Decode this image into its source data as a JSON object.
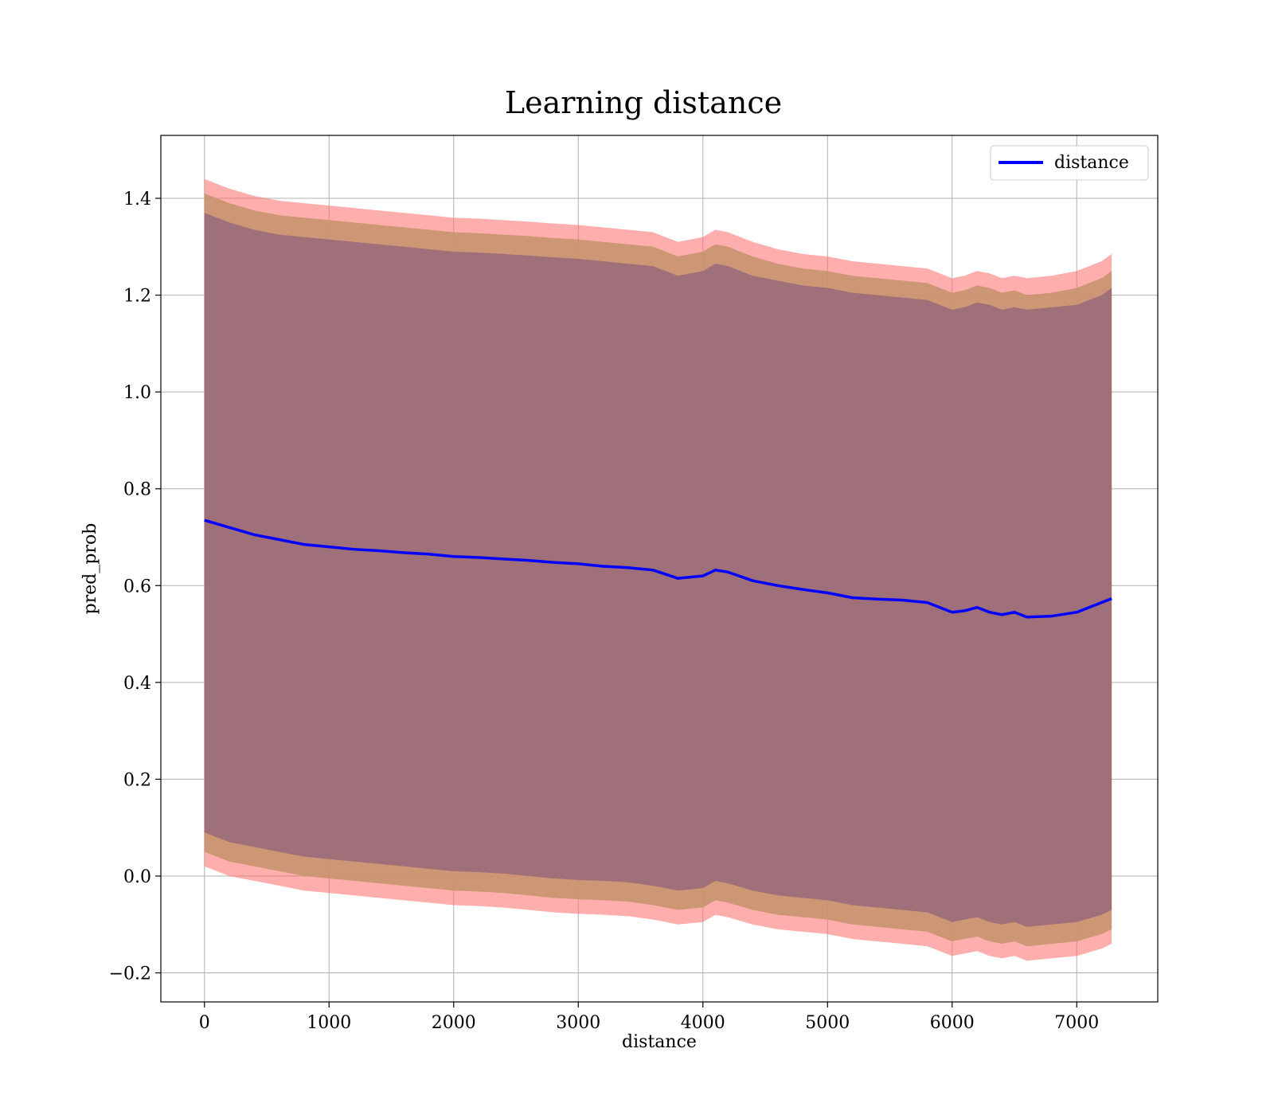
{
  "chart_data": {
    "type": "line",
    "title": "Learning distance",
    "xlabel": "distance",
    "ylabel": "pred_prob",
    "xlim": [
      -350,
      7650
    ],
    "ylim": [
      -0.26,
      1.53
    ],
    "xticks": [
      0,
      1000,
      2000,
      3000,
      4000,
      5000,
      6000,
      7000
    ],
    "xtick_labels": [
      "0",
      "1000",
      "2000",
      "3000",
      "4000",
      "5000",
      "6000",
      "7000"
    ],
    "yticks": [
      -0.2,
      0.0,
      0.2,
      0.4,
      0.6,
      0.8,
      1.0,
      1.2,
      1.4
    ],
    "ytick_labels": [
      "−0.2",
      "0.0",
      "0.2",
      "0.4",
      "0.6",
      "0.8",
      "1.0",
      "1.2",
      "1.4"
    ],
    "grid": true,
    "legend": {
      "position": "top-right",
      "entries": [
        "distance"
      ]
    },
    "colors": {
      "line": "#0000ff",
      "band_outer": "#ff6b6b",
      "band_middle": "#c8936e",
      "band_inner": "#a0707a"
    },
    "x": [
      0,
      200,
      400,
      600,
      800,
      1000,
      1200,
      1400,
      1600,
      1800,
      2000,
      2200,
      2400,
      2600,
      2800,
      3000,
      3200,
      3400,
      3600,
      3800,
      4000,
      4100,
      4200,
      4400,
      4600,
      4800,
      5000,
      5200,
      5400,
      5600,
      5800,
      6000,
      6100,
      6200,
      6300,
      6400,
      6500,
      6600,
      6800,
      7000,
      7200,
      7280
    ],
    "series": [
      {
        "name": "distance",
        "values": [
          0.735,
          0.72,
          0.705,
          0.695,
          0.685,
          0.68,
          0.675,
          0.672,
          0.668,
          0.665,
          0.66,
          0.658,
          0.655,
          0.652,
          0.648,
          0.645,
          0.64,
          0.637,
          0.632,
          0.615,
          0.62,
          0.632,
          0.628,
          0.61,
          0.6,
          0.592,
          0.585,
          0.575,
          0.572,
          0.57,
          0.565,
          0.545,
          0.548,
          0.555,
          0.545,
          0.54,
          0.545,
          0.535,
          0.537,
          0.545,
          0.565,
          0.573
        ]
      }
    ],
    "band_outer_upper": [
      1.44,
      1.42,
      1.405,
      1.395,
      1.39,
      1.385,
      1.38,
      1.375,
      1.37,
      1.365,
      1.36,
      1.358,
      1.355,
      1.352,
      1.348,
      1.345,
      1.34,
      1.335,
      1.33,
      1.31,
      1.32,
      1.335,
      1.33,
      1.31,
      1.295,
      1.285,
      1.28,
      1.27,
      1.265,
      1.26,
      1.255,
      1.235,
      1.24,
      1.25,
      1.245,
      1.235,
      1.24,
      1.235,
      1.24,
      1.25,
      1.27,
      1.285
    ],
    "band_outer_lower": [
      0.02,
      0.0,
      -0.01,
      -0.02,
      -0.03,
      -0.035,
      -0.04,
      -0.045,
      -0.05,
      -0.055,
      -0.06,
      -0.062,
      -0.065,
      -0.07,
      -0.075,
      -0.078,
      -0.08,
      -0.083,
      -0.09,
      -0.1,
      -0.095,
      -0.08,
      -0.085,
      -0.1,
      -0.11,
      -0.115,
      -0.12,
      -0.13,
      -0.135,
      -0.14,
      -0.145,
      -0.165,
      -0.16,
      -0.155,
      -0.165,
      -0.17,
      -0.165,
      -0.175,
      -0.17,
      -0.165,
      -0.15,
      -0.14
    ],
    "band_middle_upper": [
      1.41,
      1.39,
      1.375,
      1.365,
      1.36,
      1.355,
      1.35,
      1.345,
      1.34,
      1.335,
      1.33,
      1.328,
      1.325,
      1.322,
      1.318,
      1.315,
      1.31,
      1.305,
      1.3,
      1.28,
      1.29,
      1.305,
      1.3,
      1.28,
      1.265,
      1.255,
      1.25,
      1.24,
      1.235,
      1.23,
      1.225,
      1.205,
      1.21,
      1.22,
      1.215,
      1.205,
      1.21,
      1.2,
      1.205,
      1.215,
      1.235,
      1.25
    ],
    "band_middle_lower": [
      0.05,
      0.03,
      0.02,
      0.01,
      0.0,
      -0.005,
      -0.01,
      -0.015,
      -0.02,
      -0.025,
      -0.03,
      -0.032,
      -0.035,
      -0.04,
      -0.045,
      -0.048,
      -0.05,
      -0.053,
      -0.06,
      -0.07,
      -0.065,
      -0.05,
      -0.055,
      -0.07,
      -0.08,
      -0.085,
      -0.09,
      -0.1,
      -0.105,
      -0.11,
      -0.115,
      -0.135,
      -0.13,
      -0.125,
      -0.135,
      -0.14,
      -0.135,
      -0.145,
      -0.14,
      -0.135,
      -0.12,
      -0.11
    ],
    "band_inner_upper": [
      1.37,
      1.35,
      1.335,
      1.325,
      1.32,
      1.315,
      1.31,
      1.305,
      1.3,
      1.295,
      1.29,
      1.288,
      1.285,
      1.282,
      1.278,
      1.275,
      1.27,
      1.265,
      1.26,
      1.24,
      1.25,
      1.265,
      1.26,
      1.24,
      1.23,
      1.22,
      1.215,
      1.205,
      1.2,
      1.195,
      1.19,
      1.17,
      1.175,
      1.185,
      1.18,
      1.17,
      1.175,
      1.17,
      1.175,
      1.18,
      1.2,
      1.215
    ],
    "band_inner_lower": [
      0.09,
      0.07,
      0.06,
      0.05,
      0.04,
      0.035,
      0.03,
      0.025,
      0.02,
      0.015,
      0.01,
      0.008,
      0.005,
      0.0,
      -0.005,
      -0.008,
      -0.01,
      -0.013,
      -0.02,
      -0.03,
      -0.025,
      -0.01,
      -0.015,
      -0.03,
      -0.04,
      -0.045,
      -0.05,
      -0.06,
      -0.065,
      -0.07,
      -0.075,
      -0.095,
      -0.09,
      -0.085,
      -0.095,
      -0.1,
      -0.095,
      -0.105,
      -0.1,
      -0.095,
      -0.08,
      -0.07
    ]
  }
}
